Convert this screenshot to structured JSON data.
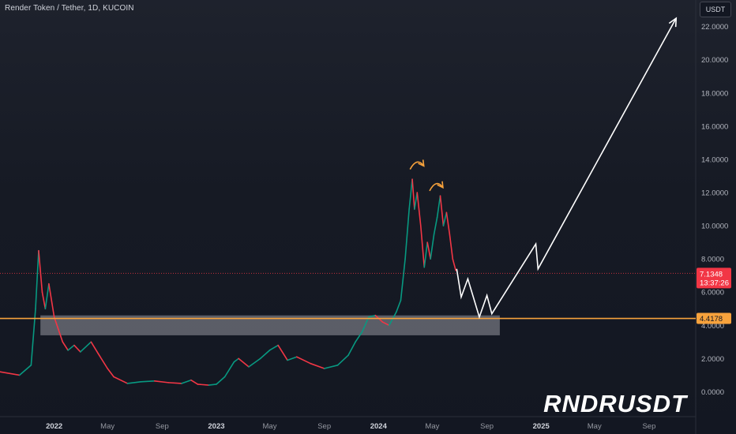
{
  "header": {
    "title": "Render Token / Tether, 1D, KUCOIN",
    "currency": "USDT"
  },
  "watermark": "RNDRUSDT",
  "price_tags": {
    "current": {
      "value": "7.1348",
      "countdown": "13:37:26",
      "color": "#f23645"
    },
    "support": {
      "value": "4.4178",
      "color": "#f7a23c"
    }
  },
  "colors": {
    "up": "#089981",
    "down": "#f23645",
    "support_line": "#f7a23c",
    "arrows": "#f7a23c",
    "projection": "#ffffff",
    "support_zone": "#9598a1"
  },
  "chart_data": {
    "type": "line",
    "symbol": "RNDRUSDT",
    "title": "Render Token / Tether, 1D, KUCOIN",
    "y_unit": "USDT",
    "y_ticks": [
      "0.0000",
      "2.0000",
      "4.0000",
      "6.0000",
      "8.0000",
      "10.0000",
      "12.0000",
      "14.0000",
      "16.0000",
      "18.0000",
      "20.0000",
      "22.0000"
    ],
    "x_ticks": [
      "2022",
      "May",
      "Sep",
      "2023",
      "May",
      "Sep",
      "2024",
      "May",
      "Sep",
      "2025",
      "May",
      "Sep"
    ],
    "ylim": [
      -1.5,
      23.6
    ],
    "grid": false,
    "series": [
      {
        "values": [
          [
            "2021-09-01",
            1.2
          ],
          [
            "2021-10-15",
            1.0
          ],
          [
            "2021-11-10",
            1.6
          ],
          [
            "2021-11-20",
            5.0
          ],
          [
            "2021-11-27",
            8.5
          ],
          [
            "2021-12-05",
            6.0
          ],
          [
            "2021-12-12",
            5.0
          ],
          [
            "2021-12-20",
            6.5
          ],
          [
            "2022-01-01",
            4.5
          ],
          [
            "2022-01-20",
            3.0
          ],
          [
            "2022-02-01",
            2.5
          ],
          [
            "2022-02-15",
            2.8
          ],
          [
            "2022-03-01",
            2.4
          ],
          [
            "2022-03-25",
            3.0
          ],
          [
            "2022-04-10",
            2.3
          ],
          [
            "2022-05-01",
            1.4
          ],
          [
            "2022-05-15",
            0.9
          ],
          [
            "2022-06-15",
            0.5
          ],
          [
            "2022-07-15",
            0.6
          ],
          [
            "2022-08-15",
            0.65
          ],
          [
            "2022-09-15",
            0.55
          ],
          [
            "2022-10-15",
            0.5
          ],
          [
            "2022-11-05",
            0.7
          ],
          [
            "2022-11-20",
            0.45
          ],
          [
            "2022-12-15",
            0.4
          ],
          [
            "2023-01-01",
            0.45
          ],
          [
            "2023-01-20",
            0.9
          ],
          [
            "2023-02-10",
            1.8
          ],
          [
            "2023-02-20",
            2.0
          ],
          [
            "2023-03-15",
            1.5
          ],
          [
            "2023-04-10",
            2.0
          ],
          [
            "2023-05-01",
            2.5
          ],
          [
            "2023-05-20",
            2.8
          ],
          [
            "2023-06-10",
            1.9
          ],
          [
            "2023-07-01",
            2.1
          ],
          [
            "2023-08-01",
            1.7
          ],
          [
            "2023-09-01",
            1.4
          ],
          [
            "2023-10-01",
            1.6
          ],
          [
            "2023-10-25",
            2.2
          ],
          [
            "2023-11-10",
            3.0
          ],
          [
            "2023-11-25",
            3.6
          ],
          [
            "2023-12-10",
            4.5
          ],
          [
            "2023-12-25",
            4.6
          ],
          [
            "2024-01-10",
            4.2
          ],
          [
            "2024-01-25",
            4.0
          ],
          [
            "2024-02-10",
            4.8
          ],
          [
            "2024-02-20",
            5.5
          ],
          [
            "2024-03-01",
            8.0
          ],
          [
            "2024-03-10",
            11.0
          ],
          [
            "2024-03-17",
            12.8
          ],
          [
            "2024-03-22",
            11.0
          ],
          [
            "2024-03-28",
            12.0
          ],
          [
            "2024-04-05",
            10.0
          ],
          [
            "2024-04-13",
            7.5
          ],
          [
            "2024-04-20",
            9.0
          ],
          [
            "2024-04-27",
            8.0
          ],
          [
            "2024-05-05",
            9.5
          ],
          [
            "2024-05-12",
            10.5
          ],
          [
            "2024-05-19",
            11.8
          ],
          [
            "2024-05-26",
            10.0
          ],
          [
            "2024-06-02",
            10.8
          ],
          [
            "2024-06-09",
            9.5
          ],
          [
            "2024-06-16",
            8.0
          ],
          [
            "2024-06-23",
            7.3
          ]
        ]
      }
    ],
    "annotations": {
      "current_price": 7.1348,
      "support_level": 4.4178,
      "support_zone": {
        "from": "2021-12-01",
        "to": "2024-09-30",
        "low": 3.4,
        "high": 4.6
      },
      "projection_path": [
        [
          "2024-06-25",
          7.4
        ],
        [
          "2024-07-05",
          5.7
        ],
        [
          "2024-07-20",
          6.8
        ],
        [
          "2024-08-15",
          4.5
        ],
        [
          "2024-09-01",
          5.8
        ],
        [
          "2024-09-12",
          4.7
        ],
        [
          "2024-12-20",
          8.9
        ],
        [
          "2024-12-25",
          7.4
        ],
        [
          "2025-11-01",
          22.5
        ]
      ],
      "arrows": [
        {
          "from": [
            "2024-03-12",
            13.4
          ],
          "to": [
            "2024-04-12",
            13.6
          ]
        },
        {
          "from": [
            "2024-04-25",
            12.1
          ],
          "to": [
            "2024-05-25",
            12.3
          ]
        }
      ]
    }
  }
}
